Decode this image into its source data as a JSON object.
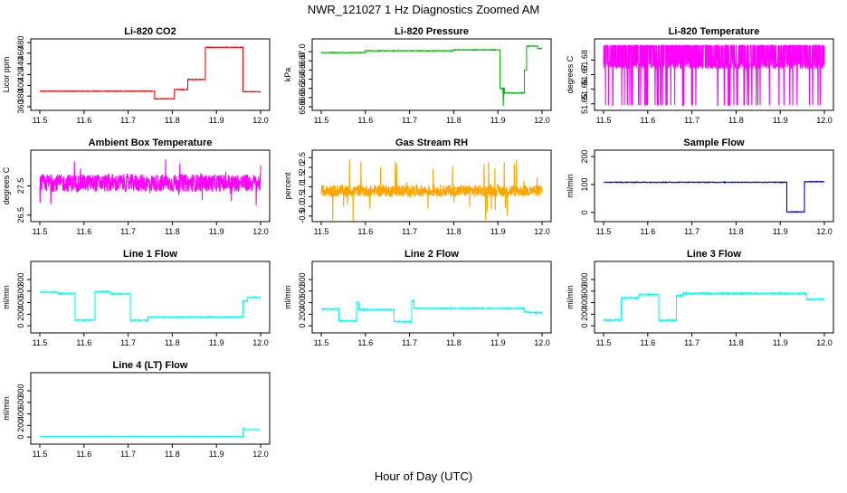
{
  "figure": {
    "title": "NWR_121027  1 Hz Diagnostics Zoomed AM",
    "xlabel": "Hour of Day (UTC)"
  },
  "chart_data": [
    {
      "type": "line",
      "title": "Li-820 CO2",
      "ylabel": "Licor ppm",
      "color": "#ff0000",
      "xlim": [
        11.5,
        12.0
      ],
      "ylim": [
        360,
        480
      ],
      "xticks": [
        "11.5",
        "11.6",
        "11.7",
        "11.8",
        "11.9",
        "12.0"
      ],
      "yticks": [
        "360",
        "380",
        "400",
        "420",
        "440",
        "460",
        "480"
      ],
      "noise": 0.6,
      "segments": [
        [
          11.5,
          11.76,
          389
        ],
        [
          11.76,
          11.805,
          375
        ],
        [
          11.805,
          11.835,
          392
        ],
        [
          11.835,
          11.875,
          411
        ],
        [
          11.875,
          11.96,
          471
        ],
        [
          11.96,
          12.0,
          388
        ]
      ],
      "spikes": []
    },
    {
      "type": "line",
      "title": "Li-820 Pressure",
      "ylabel": "kPa",
      "color": "#00c000",
      "xlim": [
        11.5,
        12.0
      ],
      "ylim": [
        65.8,
        67.2
      ],
      "xticks": [
        "11.5",
        "11.6",
        "11.7",
        "11.8",
        "11.9",
        "12.0"
      ],
      "yticks": [
        "65.8",
        "66.0",
        "66.2",
        "66.4",
        "66.6",
        "66.8",
        "67.0"
      ],
      "noise": 0.008,
      "segments": [
        [
          11.5,
          11.6,
          66.98
        ],
        [
          11.6,
          11.8,
          67.02
        ],
        [
          11.8,
          11.905,
          67.04
        ],
        [
          11.905,
          11.915,
          66.2
        ],
        [
          11.915,
          11.96,
          66.1
        ],
        [
          11.96,
          11.965,
          66.6
        ],
        [
          11.965,
          11.99,
          67.12
        ],
        [
          11.99,
          12.0,
          67.07
        ]
      ],
      "spikes": [
        [
          11.912,
          65.82
        ]
      ]
    },
    {
      "type": "line",
      "title": "Li-820 Temperature",
      "ylabel": "degrees C",
      "color": "#ff00ff",
      "xlim": [
        11.5,
        12.0
      ],
      "ylim": [
        51.648,
        51.692
      ],
      "xticks": [
        "11.5",
        "11.6",
        "11.7",
        "11.8",
        "11.9",
        "12.0"
      ],
      "yticks": [
        "51.65",
        "51.66",
        "51.67",
        "51.68"
      ],
      "mode": "binary",
      "low": 51.649,
      "high": 51.69,
      "band": 51.676
    },
    {
      "type": "line",
      "title": "Ambient Box Temperature",
      "ylabel": "degrees C",
      "color": "#ff00ff",
      "xlim": [
        11.5,
        12.0
      ],
      "ylim": [
        26.4,
        28.6
      ],
      "xticks": [
        "11.5",
        "11.6",
        "11.7",
        "11.8",
        "11.9",
        "12.0"
      ],
      "yticks": [
        "26.5",
        "27.5"
      ],
      "mode": "noise",
      "center": 27.6,
      "amp": 0.3,
      "spike_amp": 0.9
    },
    {
      "type": "line",
      "title": "Gas Stream RH",
      "ylabel": "percent",
      "color": "#ffa500",
      "xlim": [
        11.5,
        12.0
      ],
      "ylim": [
        -0.6,
        2.7
      ],
      "xticks": [
        "11.5",
        "11.6",
        "11.7",
        "11.8",
        "11.9",
        "12.0"
      ],
      "yticks": [
        "-0.5",
        "0.0",
        "0.5",
        "1.0",
        "1.5",
        "2.0",
        "2.5"
      ],
      "mode": "noise",
      "center": 0.8,
      "amp": 0.3,
      "spike_amp": 1.7
    },
    {
      "type": "line",
      "title": "Sample Flow",
      "ylabel": "ml/min",
      "color": "#0000cc",
      "xlim": [
        11.5,
        12.0
      ],
      "ylim": [
        -20,
        210
      ],
      "xticks": [
        "11.5",
        "11.6",
        "11.7",
        "11.8",
        "11.9",
        "12.0"
      ],
      "yticks": [
        "0",
        "100",
        "200"
      ],
      "noise": 1.2,
      "segments": [
        [
          11.5,
          11.915,
          108
        ],
        [
          11.915,
          11.955,
          2
        ],
        [
          11.955,
          12.0,
          110
        ]
      ],
      "spikes": []
    },
    {
      "type": "line",
      "title": "Line 1 Flow",
      "ylabel": "ml/min",
      "color": "#00ffff",
      "xlim": [
        11.5,
        12.0
      ],
      "ylim": [
        -60,
        1050
      ],
      "xticks": [
        "11.5",
        "11.6",
        "11.7",
        "11.8",
        "11.9",
        "12.0"
      ],
      "yticks": [
        "0",
        "200",
        "400",
        "600",
        "800"
      ],
      "noise": 10,
      "segments": [
        [
          11.5,
          11.54,
          580
        ],
        [
          11.54,
          11.58,
          560
        ],
        [
          11.58,
          11.625,
          100
        ],
        [
          11.625,
          11.66,
          590
        ],
        [
          11.66,
          11.705,
          550
        ],
        [
          11.705,
          11.745,
          95
        ],
        [
          11.745,
          11.96,
          150
        ],
        [
          11.96,
          11.97,
          430
        ],
        [
          11.97,
          12.0,
          490
        ]
      ],
      "spikes": []
    },
    {
      "type": "line",
      "title": "Line 2 Flow",
      "ylabel": "ml/min",
      "color": "#00ffff",
      "xlim": [
        11.5,
        12.0
      ],
      "ylim": [
        -60,
        1050
      ],
      "xticks": [
        "11.5",
        "11.6",
        "11.7",
        "11.8",
        "11.9",
        "12.0"
      ],
      "yticks": [
        "0",
        "200",
        "400",
        "600",
        "800"
      ],
      "noise": 10,
      "segments": [
        [
          11.5,
          11.54,
          290
        ],
        [
          11.54,
          11.58,
          85
        ],
        [
          11.58,
          11.585,
          400
        ],
        [
          11.585,
          11.665,
          280
        ],
        [
          11.665,
          11.705,
          70
        ],
        [
          11.705,
          11.71,
          430
        ],
        [
          11.71,
          11.96,
          300
        ],
        [
          11.96,
          11.97,
          240
        ],
        [
          11.97,
          12.0,
          230
        ]
      ],
      "spikes": []
    },
    {
      "type": "line",
      "title": "Line 3 Flow",
      "ylabel": "ml/min",
      "color": "#00ffff",
      "xlim": [
        11.5,
        12.0
      ],
      "ylim": [
        -60,
        1050
      ],
      "xticks": [
        "11.5",
        "11.6",
        "11.7",
        "11.8",
        "11.9",
        "12.0"
      ],
      "yticks": [
        "0",
        "200",
        "400",
        "600",
        "800"
      ],
      "noise": 12,
      "segments": [
        [
          11.5,
          11.54,
          100
        ],
        [
          11.54,
          11.58,
          480
        ],
        [
          11.58,
          11.625,
          540
        ],
        [
          11.625,
          11.665,
          95
        ],
        [
          11.665,
          11.68,
          520
        ],
        [
          11.68,
          11.96,
          560
        ],
        [
          11.96,
          12.0,
          460
        ]
      ],
      "spikes": []
    },
    {
      "type": "line",
      "title": "Line 4 (LT) Flow",
      "ylabel": "ml/min",
      "color": "#00ffff",
      "xlim": [
        11.5,
        12.0
      ],
      "ylim": [
        -60,
        1050
      ],
      "xticks": [
        "11.5",
        "11.6",
        "11.7",
        "11.8",
        "11.9",
        "12.0"
      ],
      "yticks": [
        "0",
        "200",
        "400",
        "600",
        "800"
      ],
      "noise": 3,
      "segments": [
        [
          11.5,
          11.96,
          8
        ],
        [
          11.96,
          11.965,
          150
        ],
        [
          11.965,
          12.0,
          130
        ]
      ],
      "spikes": []
    }
  ]
}
